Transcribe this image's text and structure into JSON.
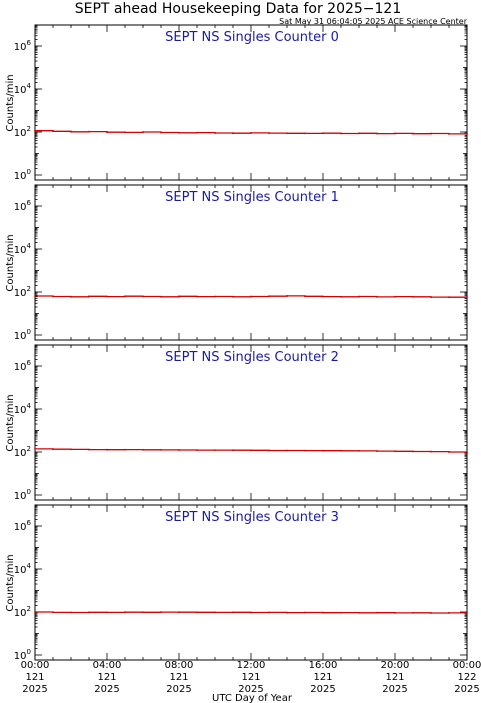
{
  "header": {
    "title": "SEPT ahead Housekeeping Data for 2025−121",
    "timestamp": "Sat May 31 06:04:05 2025 ACE Science Center"
  },
  "chart_data": [
    {
      "type": "line",
      "title": "SEPT NS Singles Counter 0",
      "ylabel": "Counts/min",
      "yscale": "log",
      "ylim": [
        1,
        10000000
      ],
      "y_tick_labels": [
        {
          "base": "10",
          "exp": "0"
        },
        {
          "base": "10",
          "exp": "2"
        },
        {
          "base": "10",
          "exp": "4"
        },
        {
          "base": "10",
          "exp": "6"
        }
      ],
      "x": [
        0,
        1,
        2,
        3,
        4,
        5,
        6,
        7,
        8,
        9,
        10,
        11,
        12,
        13,
        14,
        15,
        16,
        17,
        18,
        19,
        20,
        21,
        22,
        23,
        24
      ],
      "values": [
        115,
        108,
        102,
        104,
        98,
        96,
        100,
        95,
        92,
        94,
        90,
        88,
        91,
        89,
        87,
        86,
        88,
        85,
        87,
        84,
        86,
        83,
        85,
        82,
        84
      ]
    },
    {
      "type": "line",
      "title": "SEPT NS Singles Counter 1",
      "ylabel": "Counts/min",
      "yscale": "log",
      "ylim": [
        1,
        10000000
      ],
      "y_tick_labels": [
        {
          "base": "10",
          "exp": "0"
        },
        {
          "base": "10",
          "exp": "2"
        },
        {
          "base": "10",
          "exp": "4"
        },
        {
          "base": "10",
          "exp": "6"
        }
      ],
      "x": [
        0,
        1,
        2,
        3,
        4,
        5,
        6,
        7,
        8,
        9,
        10,
        11,
        12,
        13,
        14,
        15,
        16,
        17,
        18,
        19,
        20,
        21,
        22,
        23,
        24
      ],
      "values": [
        65,
        62,
        60,
        63,
        61,
        64,
        62,
        60,
        63,
        61,
        62,
        60,
        62,
        64,
        66,
        63,
        61,
        60,
        62,
        59,
        61,
        60,
        58,
        57,
        58
      ]
    },
    {
      "type": "line",
      "title": "SEPT NS Singles Counter 2",
      "ylabel": "Counts/min",
      "yscale": "log",
      "ylim": [
        1,
        10000000
      ],
      "y_tick_labels": [
        {
          "base": "10",
          "exp": "0"
        },
        {
          "base": "10",
          "exp": "2"
        },
        {
          "base": "10",
          "exp": "4"
        },
        {
          "base": "10",
          "exp": "6"
        }
      ],
      "x": [
        0,
        1,
        2,
        3,
        4,
        5,
        6,
        7,
        8,
        9,
        10,
        11,
        12,
        13,
        14,
        15,
        16,
        17,
        18,
        19,
        20,
        21,
        22,
        23,
        24
      ],
      "values": [
        140,
        135,
        132,
        130,
        128,
        130,
        127,
        125,
        124,
        123,
        122,
        121,
        120,
        118,
        117,
        116,
        115,
        114,
        112,
        110,
        108,
        106,
        104,
        100,
        95
      ]
    },
    {
      "type": "line",
      "title": "SEPT NS Singles Counter 3",
      "ylabel": "Counts/min",
      "yscale": "log",
      "ylim": [
        1,
        10000000
      ],
      "y_tick_labels": [
        {
          "base": "10",
          "exp": "0"
        },
        {
          "base": "10",
          "exp": "2"
        },
        {
          "base": "10",
          "exp": "4"
        },
        {
          "base": "10",
          "exp": "6"
        }
      ],
      "x": [
        0,
        1,
        2,
        3,
        4,
        5,
        6,
        7,
        8,
        9,
        10,
        11,
        12,
        13,
        14,
        15,
        16,
        17,
        18,
        19,
        20,
        21,
        22,
        23,
        24
      ],
      "values": [
        100,
        96,
        95,
        97,
        96,
        98,
        97,
        99,
        98,
        97,
        96,
        97,
        95,
        96,
        94,
        95,
        93,
        94,
        92,
        93,
        91,
        92,
        90,
        91,
        90
      ]
    }
  ],
  "xaxis": {
    "label": "UTC Day of Year",
    "xlim": [
      0,
      24
    ],
    "ticks": [
      {
        "hours": 0,
        "time": "00:00",
        "day": "121",
        "year": "2025"
      },
      {
        "hours": 4,
        "time": "04:00",
        "day": "121",
        "year": "2025"
      },
      {
        "hours": 8,
        "time": "08:00",
        "day": "121",
        "year": "2025"
      },
      {
        "hours": 12,
        "time": "12:00",
        "day": "121",
        "year": "2025"
      },
      {
        "hours": 16,
        "time": "16:00",
        "day": "121",
        "year": "2025"
      },
      {
        "hours": 20,
        "time": "20:00",
        "day": "121",
        "year": "2025"
      },
      {
        "hours": 24,
        "time": "00:00",
        "day": "122",
        "year": "2025"
      }
    ]
  },
  "colors": {
    "trace": "#d40000",
    "title": "#1a1aa6",
    "axes": "#000000"
  }
}
